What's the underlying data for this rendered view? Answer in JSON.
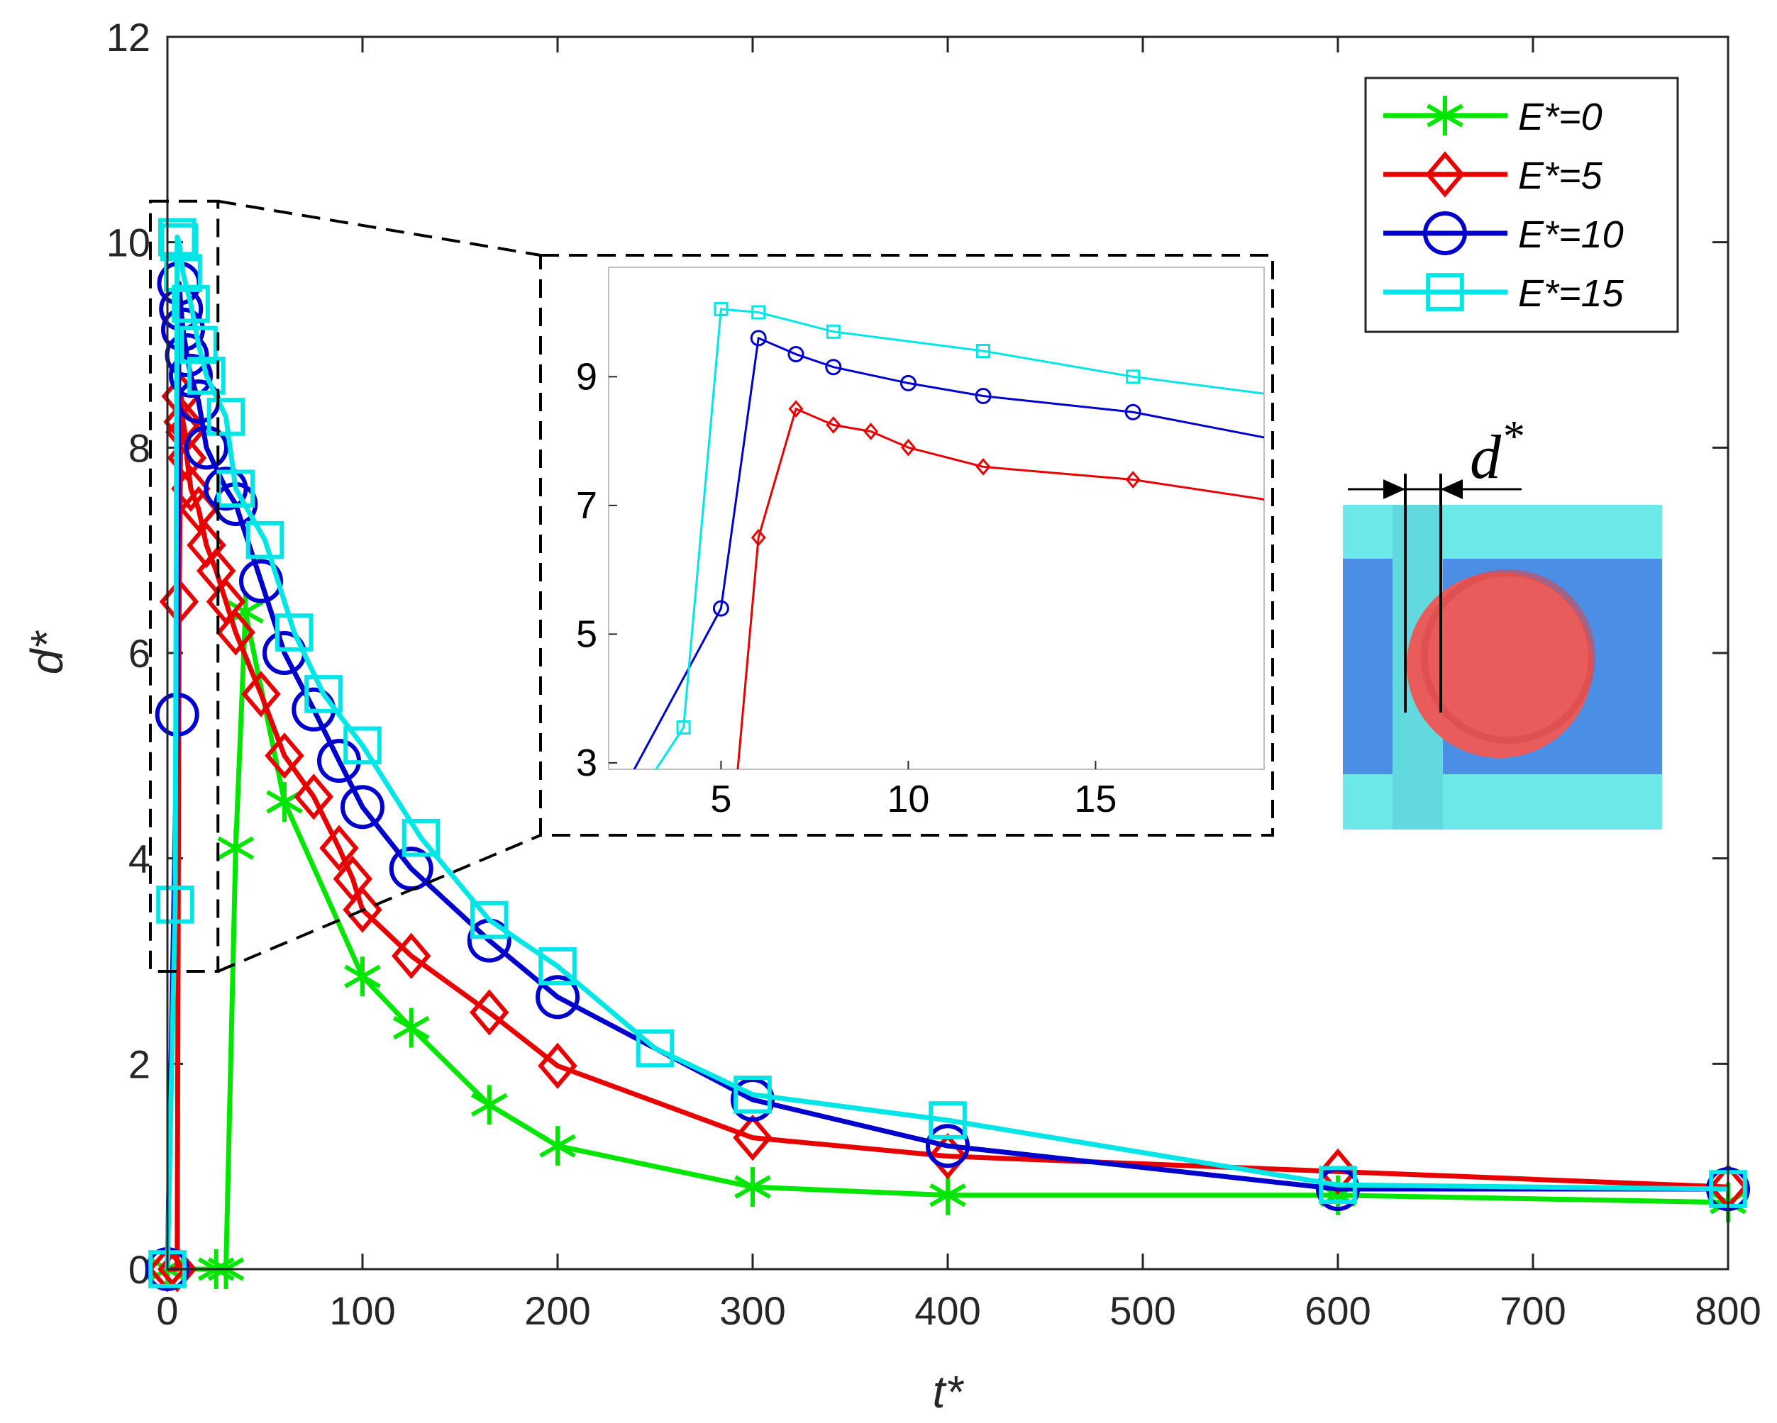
{
  "chart_data": {
    "type": "line",
    "title": "",
    "xlabel": "t*",
    "ylabel": "d*",
    "xlim": [
      0,
      800
    ],
    "ylim": [
      0,
      12
    ],
    "xticks": [
      "0",
      "100",
      "200",
      "300",
      "400",
      "500",
      "600",
      "700",
      "800"
    ],
    "yticks": [
      "0",
      "2",
      "4",
      "6",
      "8",
      "10",
      "12"
    ],
    "legend_position": "top-right",
    "series": [
      {
        "name": "E*=0",
        "color": "#00e600",
        "marker": "asterisk",
        "x": [
          0,
          25,
          30,
          35,
          40,
          60,
          100,
          125,
          165,
          200,
          300,
          400,
          600,
          800
        ],
        "y": [
          0,
          0,
          0,
          4.1,
          6.4,
          4.55,
          2.85,
          2.35,
          1.6,
          1.2,
          0.8,
          0.72,
          0.72,
          0.65
        ]
      },
      {
        "name": "E*=5",
        "color": "#e60000",
        "marker": "diamond",
        "x": [
          0,
          5,
          6,
          7,
          8,
          9,
          10,
          12,
          16,
          20,
          25,
          30,
          35,
          48,
          60,
          75,
          88,
          95,
          100,
          125,
          165,
          200,
          300,
          400,
          600,
          800
        ],
        "y": [
          0,
          0,
          6.5,
          8.5,
          8.25,
          8.15,
          7.9,
          7.6,
          7.4,
          7.05,
          6.8,
          6.5,
          6.2,
          5.6,
          5.0,
          4.6,
          4.1,
          3.8,
          3.5,
          3.05,
          2.5,
          1.98,
          1.28,
          1.1,
          0.95,
          0.8
        ]
      },
      {
        "name": "E*=10",
        "color": "#0000cc",
        "marker": "circle",
        "x": [
          0,
          5,
          6,
          7,
          8,
          10,
          12,
          16,
          20,
          30,
          35,
          48,
          60,
          75,
          88,
          100,
          125,
          165,
          200,
          300,
          400,
          600,
          800
        ],
        "y": [
          0,
          5.4,
          9.6,
          9.35,
          9.15,
          8.9,
          8.7,
          8.45,
          8.0,
          7.6,
          7.45,
          6.7,
          6.0,
          5.45,
          4.95,
          4.5,
          3.9,
          3.2,
          2.65,
          1.65,
          1.2,
          0.78,
          0.78
        ]
      },
      {
        "name": "E*=15",
        "color": "#00e6e6",
        "marker": "square",
        "x": [
          0,
          4,
          5,
          6,
          8,
          12,
          16,
          20,
          30,
          35,
          50,
          65,
          80,
          100,
          130,
          165,
          200,
          250,
          300,
          400,
          600,
          800
        ],
        "y": [
          0,
          3.55,
          10.05,
          10.0,
          9.7,
          9.4,
          9.0,
          8.7,
          8.3,
          7.6,
          7.1,
          6.2,
          5.6,
          5.1,
          4.2,
          3.4,
          2.95,
          2.15,
          1.7,
          1.45,
          0.82,
          0.78
        ]
      }
    ],
    "inset": {
      "xlim": [
        2,
        19.5
      ],
      "ylim": [
        2.9,
        10.7
      ],
      "xticks": [
        "5",
        "10",
        "15"
      ],
      "yticks": [
        "3",
        "5",
        "7",
        "9"
      ],
      "zoom_region": {
        "x": [
          0,
          23
        ],
        "y": [
          2.9,
          10.4
        ]
      }
    }
  },
  "legend": {
    "entries": [
      "E*=0",
      "E*=5",
      "E*=10",
      "E*=15"
    ]
  },
  "diagram": {
    "label_main": "d",
    "label_sup": "*"
  }
}
